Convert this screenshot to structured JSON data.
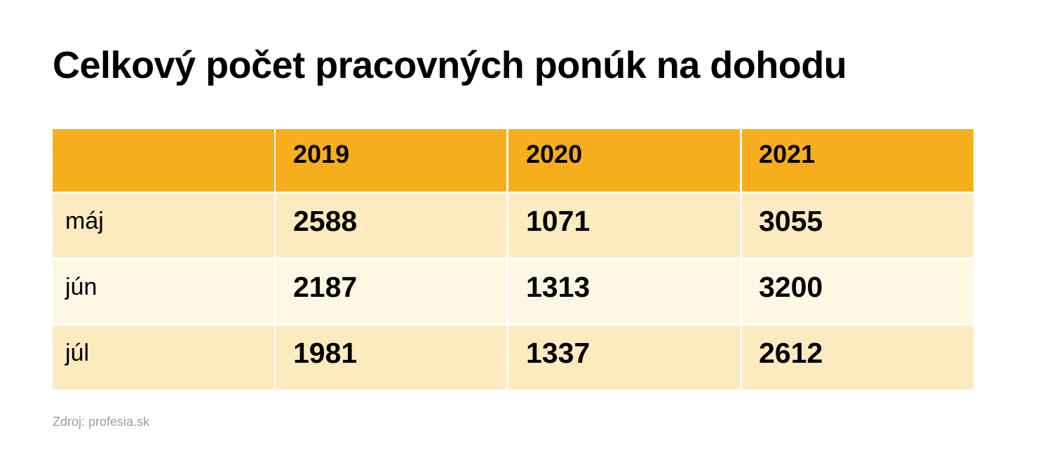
{
  "title": "Celkový počet pracovných ponúk na dohodu",
  "table": {
    "header": [
      "2019",
      "2020",
      "2021"
    ],
    "rows": [
      {
        "label": "máj",
        "values": [
          2588,
          1071,
          3055
        ]
      },
      {
        "label": "jún",
        "values": [
          2187,
          1313,
          3200
        ]
      },
      {
        "label": "júl",
        "values": [
          1981,
          1337,
          2612
        ]
      }
    ]
  },
  "source": "Zdroj: profesia.sk"
}
